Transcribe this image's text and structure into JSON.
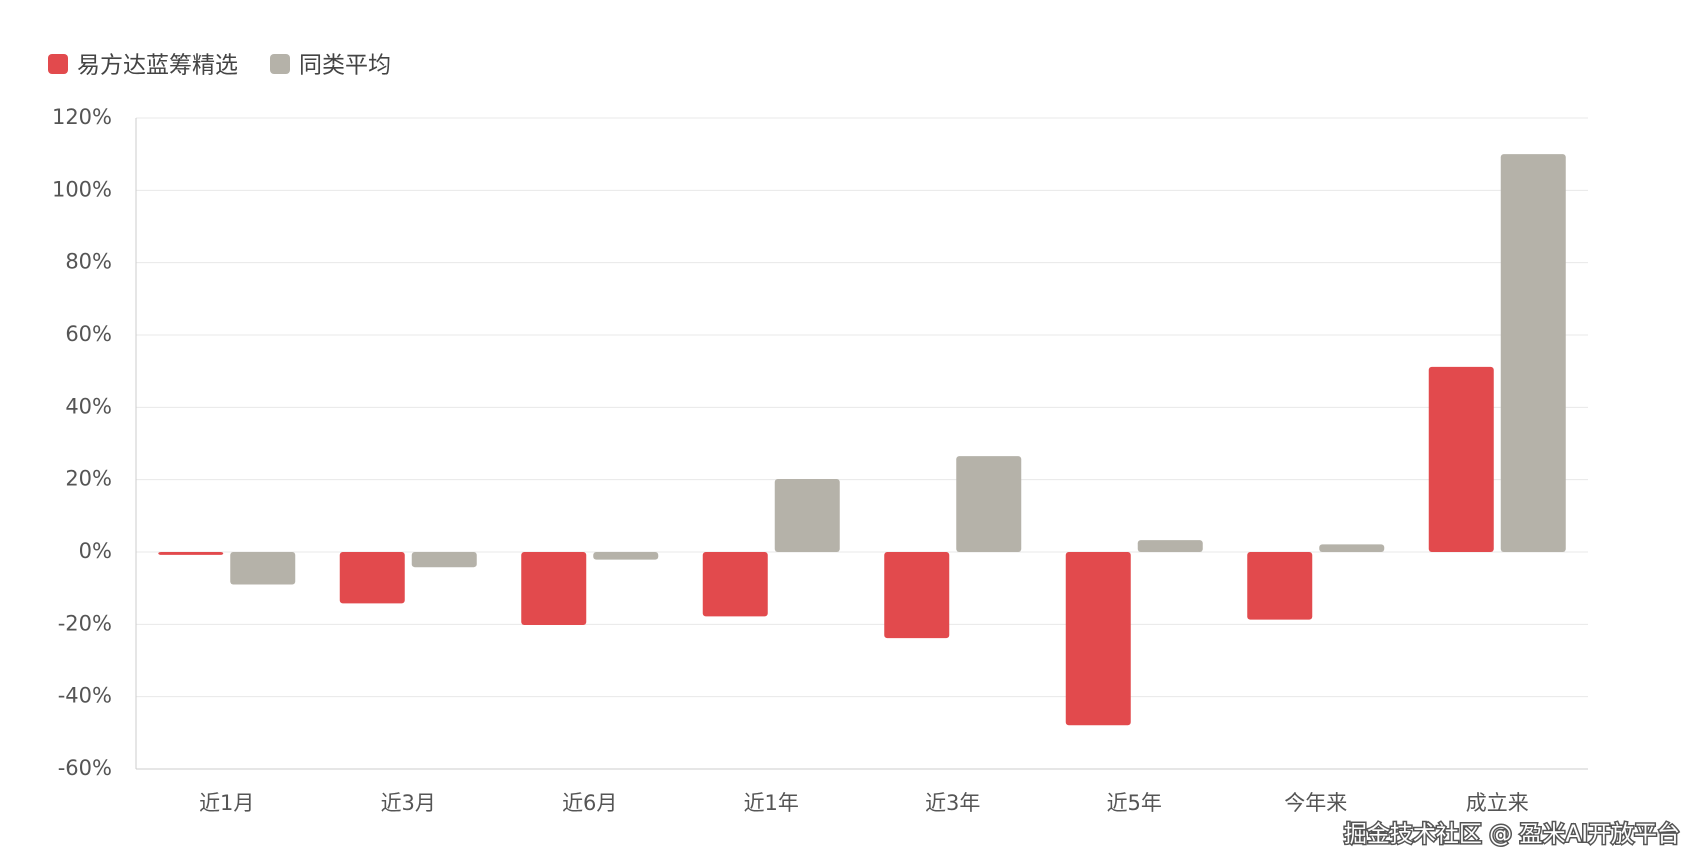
{
  "chart_data": {
    "type": "bar",
    "categories": [
      "近1月",
      "近3月",
      "近6月",
      "近1年",
      "近3年",
      "近5年",
      "今年来",
      "成立来"
    ],
    "series": [
      {
        "name": "易方达蓝筹精选",
        "color": "#e24a4d",
        "values": [
          -0.8,
          -14.2,
          -20.2,
          -17.8,
          -23.8,
          -47.9,
          -18.7,
          51.2
        ]
      },
      {
        "name": "同类平均",
        "color": "#b5b2a9",
        "values": [
          -9.0,
          -4.2,
          -2.1,
          20.2,
          26.5,
          3.3,
          2.1,
          110
        ]
      }
    ],
    "ylim": [
      -60,
      120
    ],
    "yticks": [
      {
        "value": -60,
        "label": "-60%"
      },
      {
        "value": -40,
        "label": "-40%"
      },
      {
        "value": -20,
        "label": "-20%"
      },
      {
        "value": 0,
        "label": "0%"
      },
      {
        "value": 20,
        "label": "20%"
      },
      {
        "value": 40,
        "label": "40%"
      },
      {
        "value": 60,
        "label": "60%"
      },
      {
        "value": 80,
        "label": "80%"
      },
      {
        "value": 100,
        "label": "100%"
      },
      {
        "value": 120,
        "label": "120%"
      }
    ],
    "grid": true,
    "legend": "top-left",
    "watermark": "掘金技术社区 @ 盈米AI开放平台"
  }
}
